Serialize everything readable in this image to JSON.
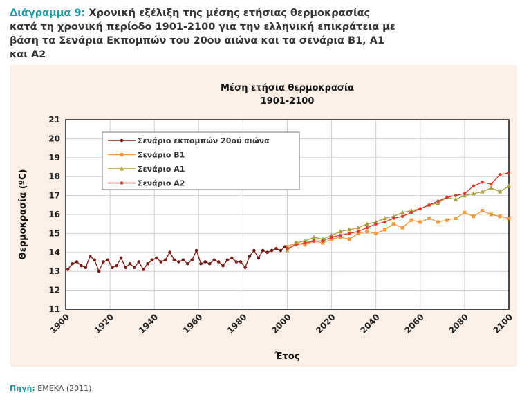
{
  "caption": {
    "label": "Διάγραμμα 9:",
    "text": "Χρονική εξέλιξη της μέσης ετήσιας θερμοκρασίας κατά τη χρονική περίοδο 1901-2100 για την ελληνική επικράτεια με βάση τα Σενάρια Εκπομπών του 20ου αιώνα και τα σενάρια Β1, Α1 και Α2"
  },
  "source": {
    "label": "Πηγή:",
    "text": "ΕΜΕΚΑ (2011)."
  },
  "chart_data": {
    "type": "line",
    "title": "Μέση ετήσια θερμοκρασία",
    "subtitle": "1901-2100",
    "xlabel": "Έτος",
    "ylabel": "Θερμοκρασία (ºC)",
    "xlim": [
      1900,
      2100
    ],
    "ylim": [
      11,
      21
    ],
    "xticks": [
      1900,
      1920,
      1940,
      1960,
      1980,
      2000,
      2020,
      2040,
      2060,
      2080,
      2100
    ],
    "yticks": [
      11,
      12,
      13,
      14,
      15,
      16,
      17,
      18,
      19,
      20,
      21
    ],
    "grid": true,
    "legend_position": "top-left",
    "series": [
      {
        "name": "Σενάριο εκπομπών 20ού αιώνα",
        "color": "#7a1a14",
        "marker": "circle",
        "x": [
          1901,
          1903,
          1905,
          1907,
          1909,
          1911,
          1913,
          1915,
          1917,
          1919,
          1921,
          1923,
          1925,
          1927,
          1929,
          1931,
          1933,
          1935,
          1937,
          1939,
          1941,
          1943,
          1945,
          1947,
          1949,
          1951,
          1953,
          1955,
          1957,
          1959,
          1961,
          1963,
          1965,
          1967,
          1969,
          1971,
          1973,
          1975,
          1977,
          1979,
          1981,
          1983,
          1985,
          1987,
          1989,
          1991,
          1993,
          1995,
          1997,
          1999
        ],
        "y": [
          13.1,
          13.4,
          13.5,
          13.3,
          13.2,
          13.8,
          13.6,
          13.0,
          13.5,
          13.6,
          13.2,
          13.3,
          13.7,
          13.2,
          13.4,
          13.2,
          13.5,
          13.1,
          13.4,
          13.6,
          13.7,
          13.5,
          13.6,
          14.0,
          13.6,
          13.5,
          13.6,
          13.4,
          13.6,
          14.1,
          13.4,
          13.5,
          13.4,
          13.6,
          13.5,
          13.3,
          13.6,
          13.7,
          13.5,
          13.5,
          13.2,
          13.8,
          14.1,
          13.7,
          14.1,
          14.0,
          14.1,
          14.2,
          14.1,
          14.3
        ]
      },
      {
        "name": "Σενάριο Β1",
        "color": "#f29a3a",
        "marker": "square",
        "x": [
          2000,
          2004,
          2008,
          2012,
          2016,
          2020,
          2024,
          2028,
          2032,
          2036,
          2040,
          2044,
          2048,
          2052,
          2056,
          2060,
          2064,
          2068,
          2072,
          2076,
          2080,
          2084,
          2088,
          2092,
          2096,
          2100
        ],
        "y": [
          14.3,
          14.5,
          14.4,
          14.6,
          14.5,
          14.7,
          14.8,
          14.7,
          15.0,
          15.1,
          15.0,
          15.2,
          15.5,
          15.3,
          15.7,
          15.6,
          15.8,
          15.6,
          15.7,
          15.8,
          16.1,
          15.9,
          16.2,
          16.0,
          15.9,
          15.8
        ]
      },
      {
        "name": "Σενάριο Α1",
        "color": "#a8a03a",
        "marker": "triangle",
        "x": [
          2000,
          2004,
          2008,
          2012,
          2016,
          2020,
          2024,
          2028,
          2032,
          2036,
          2040,
          2044,
          2048,
          2052,
          2056,
          2060,
          2064,
          2068,
          2072,
          2076,
          2080,
          2084,
          2088,
          2092,
          2096,
          2100
        ],
        "y": [
          14.1,
          14.5,
          14.6,
          14.8,
          14.7,
          14.9,
          15.1,
          15.2,
          15.3,
          15.5,
          15.6,
          15.8,
          15.9,
          16.1,
          16.2,
          16.3,
          16.5,
          16.6,
          16.9,
          16.8,
          17.0,
          17.1,
          17.2,
          17.4,
          17.2,
          17.5
        ]
      },
      {
        "name": "Σενάριο Α2",
        "color": "#e0392a",
        "marker": "circle",
        "x": [
          2000,
          2004,
          2008,
          2012,
          2016,
          2020,
          2024,
          2028,
          2032,
          2036,
          2040,
          2044,
          2048,
          2052,
          2056,
          2060,
          2064,
          2068,
          2072,
          2076,
          2080,
          2084,
          2088,
          2092,
          2096,
          2100
        ],
        "y": [
          14.2,
          14.4,
          14.5,
          14.6,
          14.6,
          14.8,
          14.9,
          15.0,
          15.1,
          15.3,
          15.5,
          15.6,
          15.8,
          15.9,
          16.1,
          16.3,
          16.5,
          16.7,
          16.9,
          17.0,
          17.1,
          17.5,
          17.7,
          17.6,
          18.1,
          18.2
        ]
      }
    ]
  }
}
